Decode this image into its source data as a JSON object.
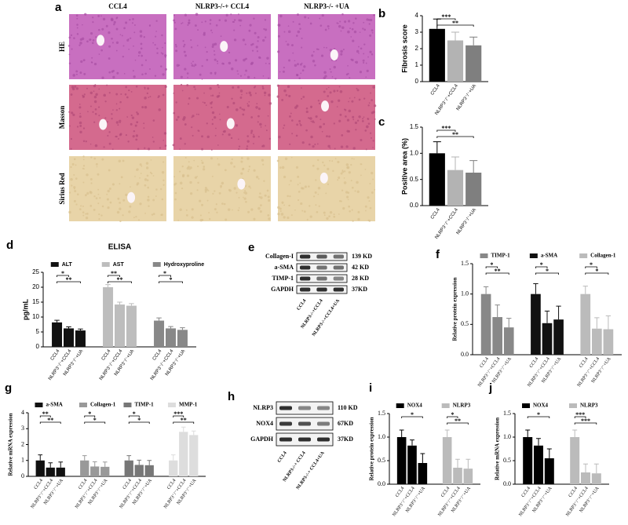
{
  "panel_a": {
    "panel": "a",
    "columns": [
      "CCL4",
      "NLRP3-/-+ CCL4",
      "NLRP3-/- +UA"
    ],
    "rows": [
      "HE",
      "Masson",
      "Sirius Red"
    ]
  },
  "panel_e": {
    "panel": "e",
    "proteins": [
      "Collagen-I",
      "a-SMA",
      "TIMP-1",
      "GAPDH"
    ],
    "sizes": [
      "139 KD",
      "42 KD",
      "28 KD",
      "37KD"
    ],
    "lanes": [
      "CCL4",
      "NLRP3-/-+CCL4",
      "NLRP3-/-+CCL4+UA"
    ]
  },
  "panel_h": {
    "panel": "h",
    "proteins": [
      "NLRP3",
      "NOX4",
      "GAPDH"
    ],
    "sizes": [
      "110 KD",
      "67KD",
      "37KD"
    ],
    "lanes": [
      "CCL4",
      "NLRP3-/-+ CCL4",
      "NLRP3-/-+ CCL4+UA"
    ]
  },
  "chart_data": [
    {
      "panel": "b",
      "type": "bar",
      "ylabel": "Fibrosis score",
      "categories": [
        "CCL4",
        "NLRP3⁻/⁻+CCL4",
        "NLRP3⁻/⁻+UA"
      ],
      "values": [
        3.2,
        2.5,
        2.2
      ],
      "errors": [
        0.6,
        0.5,
        0.5
      ],
      "colors": [
        "#000000",
        "#b3b3b3",
        "#7f7f7f"
      ],
      "significance": [
        null,
        "***",
        "**"
      ],
      "ylim": [
        0,
        4
      ],
      "yticks": [
        0,
        1,
        2,
        3,
        4
      ]
    },
    {
      "panel": "c",
      "type": "bar",
      "ylabel": "Positive area (%)",
      "categories": [
        "CCL4",
        "NLRP3⁻/⁻+CCL4",
        "NLRP3⁻/⁻+UA"
      ],
      "values": [
        1.0,
        0.68,
        0.63
      ],
      "errors": [
        0.22,
        0.25,
        0.23
      ],
      "colors": [
        "#000000",
        "#b3b3b3",
        "#7f7f7f"
      ],
      "significance": [
        null,
        "***",
        "**"
      ],
      "ylim": [
        0,
        1.5
      ],
      "yticks": [
        {
          "value": 0,
          "label": "0.0"
        },
        {
          "value": 0.5,
          "label": "0.5"
        },
        {
          "value": 1,
          "label": "1.0"
        },
        {
          "value": 1.5,
          "label": "1.5"
        }
      ]
    },
    {
      "panel": "d",
      "type": "bar",
      "title": "ELISA",
      "ylabel": "pg/mL",
      "categories": [
        "CCL4",
        "NLRP3⁻/⁻+CCL4",
        "NLRP3⁻/⁻+UA"
      ],
      "ylim": [
        0,
        25
      ],
      "yticks": [
        0,
        5,
        10,
        15,
        20,
        25
      ],
      "groups": [
        {
          "name": "ALT",
          "color": "#111111",
          "values": [
            8.2,
            6.2,
            5.5
          ],
          "errors": [
            0.7,
            0.5,
            0.5
          ],
          "significance": [
            null,
            "*",
            "**"
          ]
        },
        {
          "name": "AST",
          "color": "#bdbdbd",
          "values": [
            20,
            14.2,
            13.8
          ],
          "errors": [
            0.9,
            0.8,
            0.7
          ],
          "significance": [
            null,
            "**",
            "**"
          ]
        },
        {
          "name": "Hydroxyproline",
          "color": "#888888",
          "values": [
            8.8,
            6.2,
            5.7
          ],
          "errors": [
            0.9,
            0.6,
            0.7
          ],
          "significance": [
            null,
            "*",
            "*"
          ]
        }
      ]
    },
    {
      "panel": "f",
      "type": "bar",
      "ylabel": "Relative protein expression",
      "categories": [
        "CCL4",
        "NLRP3⁻/⁻+CCL4",
        "NLRP3⁻/⁻+UA"
      ],
      "ylim": [
        0,
        1.5
      ],
      "yticks": [
        {
          "value": 0,
          "label": "0.0"
        },
        {
          "value": 0.5,
          "label": "0.5"
        },
        {
          "value": 1,
          "label": "1.0"
        },
        {
          "value": 1.5,
          "label": "1.5"
        }
      ],
      "groups": [
        {
          "name": "TIMP-1",
          "color": "#888888",
          "values": [
            1.0,
            0.62,
            0.45
          ],
          "errors": [
            0.12,
            0.2,
            0.15
          ],
          "significance": [
            null,
            "*",
            "**"
          ]
        },
        {
          "name": "a-SMA",
          "color": "#111111",
          "values": [
            1.0,
            0.52,
            0.58
          ],
          "errors": [
            0.17,
            0.2,
            0.22
          ],
          "significance": [
            null,
            "*",
            "*"
          ]
        },
        {
          "name": "Collagen-1",
          "color": "#bbbbbb",
          "values": [
            1.0,
            0.43,
            0.42
          ],
          "errors": [
            0.13,
            0.18,
            0.22
          ],
          "significance": [
            null,
            "*",
            "*"
          ]
        }
      ]
    },
    {
      "panel": "g",
      "type": "bar",
      "ylabel": "Relative mRNA expression",
      "categories": [
        "CCL4",
        "NLRP3⁻/⁻+CCL4",
        "NLRP3⁻/⁻+UA"
      ],
      "ylim": [
        0,
        4
      ],
      "yticks": [
        0,
        1,
        2,
        3,
        4
      ],
      "groups": [
        {
          "name": "a-SMA",
          "color": "#111111",
          "values": [
            1.0,
            0.55,
            0.55
          ],
          "errors": [
            0.35,
            0.3,
            0.35
          ],
          "significance": [
            null,
            "**",
            "**"
          ]
        },
        {
          "name": "Collagen-1",
          "color": "#999999",
          "values": [
            1.0,
            0.62,
            0.6
          ],
          "errors": [
            0.3,
            0.3,
            0.3
          ],
          "significance": [
            null,
            "*",
            "*"
          ]
        },
        {
          "name": "TIMP-1",
          "color": "#777777",
          "values": [
            1.0,
            0.72,
            0.7
          ],
          "errors": [
            0.3,
            0.3,
            0.3
          ],
          "significance": [
            null,
            "*",
            "*"
          ]
        },
        {
          "name": "MMP-1",
          "color": "#dddddd",
          "values": [
            1.0,
            2.8,
            2.6
          ],
          "errors": [
            0.35,
            0.3,
            0.25
          ],
          "significance": [
            null,
            "***",
            "**"
          ]
        }
      ]
    },
    {
      "panel": "i",
      "type": "bar",
      "ylabel": "Relative protein expression",
      "categories": [
        "CCL4",
        "NLRP3⁻/⁻+CCL4",
        "NLRP3⁻/⁻+UA"
      ],
      "ylim": [
        0,
        1.5
      ],
      "yticks": [
        {
          "value": 0,
          "label": "0.0"
        },
        {
          "value": 0.5,
          "label": "0.5"
        },
        {
          "value": 1,
          "label": "1.0"
        },
        {
          "value": 1.5,
          "label": "1.5"
        }
      ],
      "groups": [
        {
          "name": "NOX4",
          "color": "#000000",
          "values": [
            1.0,
            0.82,
            0.45
          ],
          "errors": [
            0.15,
            0.12,
            0.2
          ],
          "significance": [
            null,
            null,
            "*"
          ]
        },
        {
          "name": "NLRP3",
          "color": "#bbbbbb",
          "values": [
            1.0,
            0.35,
            0.33
          ],
          "errors": [
            0.15,
            0.18,
            0.2
          ],
          "significance": [
            null,
            "*",
            "**"
          ]
        }
      ]
    },
    {
      "panel": "j",
      "type": "bar",
      "ylabel": "Relative mRNA expression",
      "categories": [
        "CCL4",
        "NLRP3⁻/⁻+CCL4",
        "NLRP3⁻/⁻+UA"
      ],
      "ylim": [
        0,
        1.5
      ],
      "yticks": [
        {
          "value": 0,
          "label": "0.0"
        },
        {
          "value": 0.5,
          "label": "0.5"
        },
        {
          "value": 1,
          "label": "1.0"
        },
        {
          "value": 1.5,
          "label": "1.5"
        }
      ],
      "groups": [
        {
          "name": "NOX4",
          "color": "#000000",
          "values": [
            1.0,
            0.82,
            0.55
          ],
          "errors": [
            0.15,
            0.15,
            0.2
          ],
          "significance": [
            null,
            null,
            "*"
          ]
        },
        {
          "name": "NLRP3",
          "color": "#bbbbbb",
          "values": [
            1.0,
            0.25,
            0.23
          ],
          "errors": [
            0.15,
            0.18,
            0.2
          ],
          "significance": [
            null,
            "***",
            "***"
          ]
        }
      ]
    }
  ]
}
